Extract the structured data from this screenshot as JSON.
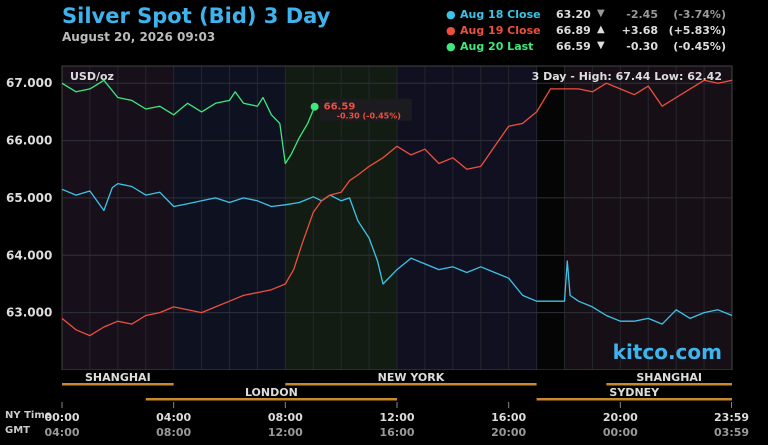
{
  "header": {
    "title": "Silver Spot (Bid) 3 Day",
    "subtitle": "August 20, 2026 09:03"
  },
  "legend": [
    {
      "name": "Aug 18 Close",
      "value": "63.20",
      "arrow": "▼",
      "change": "-2.45",
      "percent": "(-3.74%)",
      "color": "#3cc3e8"
    },
    {
      "name": "Aug 19 Close",
      "value": "66.89",
      "arrow": "▲",
      "change": "+3.68",
      "percent": "(+5.83%)",
      "color": "#ee4f3f"
    },
    {
      "name": "Aug 20 Last",
      "value": "66.59",
      "arrow": "▼",
      "change": "-0.30",
      "percent": "(-0.45%)",
      "color": "#3ee87c"
    }
  ],
  "chart_data": {
    "type": "line",
    "unit_label": "USD/oz",
    "range_info": "3 Day - High: 67.44  Low: 62.42",
    "watermark": "kitco.com",
    "last_marker": {
      "price": "66.59",
      "change": "-0.30 (-0.45%)"
    },
    "ylim": [
      62.0,
      67.3
    ],
    "y_ticks": [
      "67.000",
      "66.000",
      "65.000",
      "64.000",
      "63.000"
    ],
    "y_tick_values": [
      67,
      66,
      65,
      64,
      63
    ],
    "x_ticks_ny": [
      "00:00",
      "04:00",
      "08:00",
      "12:00",
      "16:00",
      "20:00",
      "23:59"
    ],
    "x_ticks_gmt": [
      "04:00",
      "08:00",
      "12:00",
      "16:00",
      "20:00",
      "00:00",
      "03:59"
    ],
    "x_tick_hours": [
      0,
      4,
      8,
      12,
      16,
      20,
      23.983
    ],
    "x_row_labels": [
      "NY Time",
      "GMT"
    ],
    "markets": [
      {
        "name": "SHANGHAI",
        "start": 0,
        "end": 4,
        "row": 1
      },
      {
        "name": "NEW YORK",
        "start": 8,
        "end": 17,
        "row": 1
      },
      {
        "name": "SHANGHAI",
        "start": 19.5,
        "end": 24,
        "row": 1
      },
      {
        "name": "LONDON",
        "start": 3,
        "end": 12,
        "row": 2
      },
      {
        "name": "SYDNEY",
        "start": 17,
        "end": 24,
        "row": 2
      }
    ],
    "series": [
      {
        "name": "Aug 18 Close",
        "color": "#3cc3e8",
        "x": [
          0,
          0.5,
          1,
          1.5,
          1.8,
          2,
          2.5,
          3,
          3.5,
          4,
          4.5,
          5,
          5.5,
          6,
          6.5,
          7,
          7.5,
          8,
          8.5,
          9,
          9.3,
          9.6,
          10,
          10.3,
          10.6,
          11,
          11.3,
          11.5,
          12,
          12.5,
          13,
          13.5,
          14,
          14.5,
          15,
          15.5,
          16,
          16.5,
          17,
          17.5,
          18,
          18.1,
          18.2,
          18.5,
          19,
          19.5,
          20,
          20.5,
          21,
          21.5,
          22,
          22.5,
          23,
          23.5,
          24
        ],
        "values": [
          65.15,
          65.05,
          65.12,
          64.78,
          65.18,
          65.25,
          65.2,
          65.05,
          65.1,
          64.85,
          64.9,
          64.95,
          65.0,
          64.92,
          65.0,
          64.95,
          64.85,
          64.88,
          64.92,
          65.02,
          64.95,
          65.05,
          64.95,
          65.0,
          64.6,
          64.3,
          63.9,
          63.5,
          63.75,
          63.95,
          63.85,
          63.75,
          63.8,
          63.7,
          63.8,
          63.7,
          63.6,
          63.3,
          63.2,
          63.2,
          63.2,
          63.9,
          63.3,
          63.2,
          63.1,
          62.95,
          62.85,
          62.85,
          62.9,
          62.8,
          63.05,
          62.9,
          63.0,
          63.05,
          62.95
        ]
      },
      {
        "name": "Aug 19 Close",
        "color": "#ee4f3f",
        "x": [
          0,
          0.5,
          1,
          1.5,
          2,
          2.5,
          3,
          3.5,
          4,
          4.5,
          5,
          5.5,
          6,
          6.5,
          7,
          7.5,
          8,
          8.3,
          8.6,
          9,
          9.3,
          9.6,
          10,
          10.3,
          10.6,
          11,
          11.5,
          12,
          12.5,
          13,
          13.5,
          14,
          14.5,
          15,
          15.5,
          16,
          16.5,
          17,
          17.5,
          18,
          18.5,
          19,
          19.5,
          20,
          20.5,
          21,
          21.5,
          22,
          22.5,
          23,
          23.5,
          24
        ],
        "values": [
          62.9,
          62.7,
          62.6,
          62.75,
          62.85,
          62.8,
          62.95,
          63.0,
          63.1,
          63.05,
          63.0,
          63.1,
          63.2,
          63.3,
          63.35,
          63.4,
          63.5,
          63.75,
          64.2,
          64.75,
          64.95,
          65.05,
          65.1,
          65.3,
          65.4,
          65.55,
          65.7,
          65.9,
          65.75,
          65.85,
          65.6,
          65.7,
          65.5,
          65.55,
          65.9,
          66.25,
          66.3,
          66.5,
          66.9,
          66.9,
          66.9,
          66.85,
          67.0,
          66.9,
          66.8,
          66.95,
          66.6,
          66.75,
          66.9,
          67.05,
          67.0,
          67.05
        ]
      },
      {
        "name": "Aug 20 Last",
        "color": "#3ee87c",
        "x": [
          0,
          0.5,
          1,
          1.5,
          2,
          2.5,
          3,
          3.5,
          4,
          4.5,
          5,
          5.5,
          6,
          6.2,
          6.5,
          7,
          7.2,
          7.5,
          7.8,
          8,
          8.2,
          8.5,
          8.8,
          9.05
        ],
        "values": [
          67.0,
          66.85,
          66.9,
          67.05,
          66.75,
          66.7,
          66.55,
          66.6,
          66.45,
          66.65,
          66.5,
          66.65,
          66.7,
          66.85,
          66.65,
          66.6,
          66.75,
          66.45,
          66.3,
          65.6,
          65.75,
          66.05,
          66.3,
          66.59
        ]
      }
    ]
  }
}
